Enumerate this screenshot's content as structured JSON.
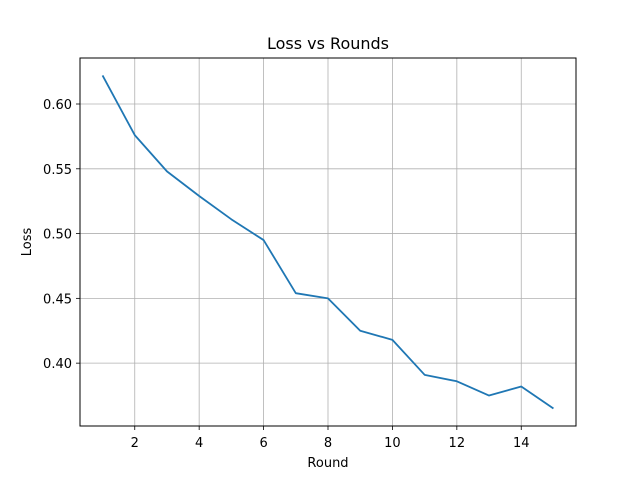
{
  "chart_data": {
    "type": "line",
    "title": "Loss vs Rounds",
    "xlabel": "Round",
    "ylabel": "Loss",
    "xlim": [
      0.3,
      15.7
    ],
    "ylim": [
      0.3515,
      0.6355
    ],
    "xticks": [
      2,
      4,
      6,
      8,
      10,
      12,
      14
    ],
    "xtick_labels": [
      "2",
      "4",
      "6",
      "8",
      "10",
      "12",
      "14"
    ],
    "yticks": [
      0.4,
      0.45,
      0.5,
      0.55,
      0.6
    ],
    "ytick_labels": [
      "0.40",
      "0.45",
      "0.50",
      "0.55",
      "0.60"
    ],
    "grid": true,
    "series": [
      {
        "color": "#1f77b4",
        "x": [
          1,
          2,
          3,
          4,
          5,
          6,
          7,
          8,
          9,
          10,
          11,
          12,
          13,
          14,
          15
        ],
        "y": [
          0.622,
          0.576,
          0.548,
          0.529,
          0.511,
          0.495,
          0.454,
          0.45,
          0.425,
          0.418,
          0.391,
          0.386,
          0.375,
          0.382,
          0.365
        ]
      }
    ]
  }
}
